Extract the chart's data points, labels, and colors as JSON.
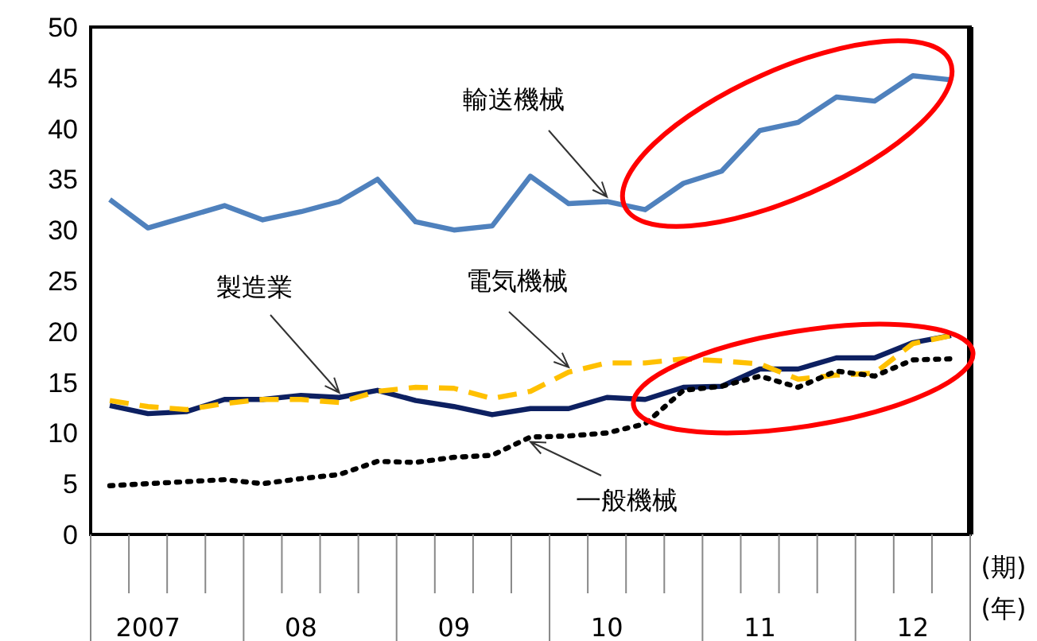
{
  "chart_data": {
    "type": "line",
    "xlabel": "(年)",
    "annotations": [
      "(期)"
    ],
    "categories": [
      null,
      "2007",
      null,
      null,
      null,
      "08",
      null,
      null,
      null,
      "09",
      null,
      null,
      null,
      "10",
      null,
      null,
      null,
      "11",
      null,
      null,
      null,
      "12",
      null
    ],
    "series": [
      {
        "name": "輸送機械",
        "color": "#4f81bd",
        "line_style": "solid",
        "values": [
          33.0,
          30.2,
          31.3,
          32.4,
          31.0,
          31.8,
          32.8,
          35.0,
          30.8,
          30.0,
          30.4,
          35.3,
          32.6,
          32.8,
          32.0,
          34.6,
          35.8,
          39.8,
          40.6,
          43.1,
          42.7,
          45.2,
          44.8
        ]
      },
      {
        "name": "製造業",
        "color": "#0d2061",
        "line_style": "solid",
        "values": [
          12.7,
          11.9,
          12.1,
          13.3,
          13.3,
          13.7,
          13.5,
          14.2,
          13.2,
          12.6,
          11.8,
          12.4,
          12.4,
          13.5,
          13.3,
          14.5,
          14.6,
          16.3,
          16.3,
          17.4,
          17.4,
          18.9,
          19.6
        ]
      },
      {
        "name": "電気機械",
        "color": "#ffc000",
        "line_style": "dashed",
        "values": [
          13.2,
          12.6,
          12.3,
          12.9,
          13.3,
          13.3,
          13.0,
          14.1,
          14.5,
          14.4,
          13.4,
          14.1,
          16.0,
          16.9,
          16.9,
          17.3,
          17.1,
          16.8,
          15.3,
          15.7,
          15.9,
          18.8,
          19.6
        ]
      },
      {
        "name": "一般機械",
        "color": "#000000",
        "line_style": "dotted",
        "values": [
          4.8,
          5.0,
          5.2,
          5.4,
          5.0,
          5.5,
          5.9,
          7.2,
          7.1,
          7.6,
          7.8,
          9.6,
          9.7,
          10.0,
          10.9,
          14.2,
          14.6,
          15.6,
          14.5,
          16.1,
          15.6,
          17.2,
          17.3
        ]
      }
    ],
    "ylim": [
      0,
      50
    ],
    "yticks": [
      0,
      5,
      10,
      15,
      20,
      25,
      30,
      35,
      40,
      45,
      50
    ],
    "grid": false,
    "legend": false,
    "marker": "none"
  }
}
